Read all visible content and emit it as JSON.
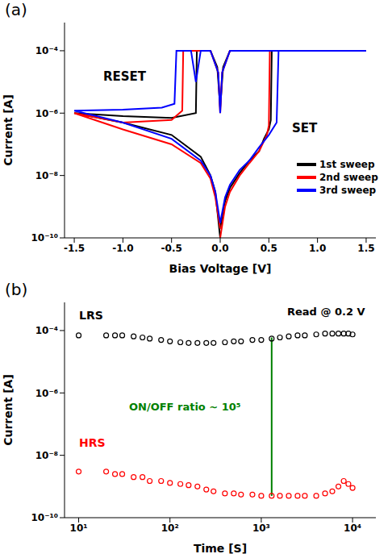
{
  "chart_data": [
    {
      "type": "line",
      "title": "(a)",
      "x_label": "Bias Voltage [V]",
      "y_label": "Current [A]",
      "log": "y",
      "legend": "lower right",
      "xlim": [
        -1.6,
        1.6
      ],
      "xticks": [
        -1.5,
        {
          "value": -1.0,
          "label": "-1.0"
        },
        -0.5,
        {
          "value": 0.0,
          "label": "0.0"
        },
        0.5,
        {
          "value": 1.0,
          "label": "1.0"
        },
        1.5
      ],
      "ylim": [
        1e-10,
        0.0008
      ],
      "yticks": [
        {
          "value": 1e-10,
          "label": "10⁻¹⁰"
        },
        {
          "value": 1e-08,
          "label": "10⁻⁸"
        },
        {
          "value": 1e-06,
          "label": "10⁻⁶"
        },
        {
          "value": 0.0001,
          "label": "10⁻⁴"
        }
      ],
      "annotations": [
        {
          "text": "RESET"
        },
        {
          "text": "SET"
        }
      ],
      "series": [
        {
          "name": "1st sweep",
          "color": "#000000",
          "marker": "none",
          "line_style": "solid",
          "x": [
            0,
            0.05,
            0.1,
            0.2,
            0.3,
            0.4,
            0.45,
            0.5,
            0.52,
            0.53,
            1.0,
            1.5,
            1.0,
            0.5,
            0.1,
            0.03,
            0.0,
            -0.03,
            -0.1,
            -0.2,
            -0.24,
            -0.25,
            -0.5,
            -1.0,
            -1.5,
            -1.0,
            -0.5,
            -0.2,
            -0.1,
            -0.05,
            0.0
          ],
          "values": [
            2e-10,
            1.5e-09,
            4e-09,
            1.2e-08,
            3e-08,
            6e-08,
            1.5e-07,
            3e-07,
            6e-07,
            0.0001,
            0.0001,
            0.0001,
            0.0001,
            0.0001,
            0.0001,
            3e-05,
            1.5e-06,
            3e-05,
            0.0001,
            0.0001,
            0.0001,
            1e-06,
            7e-07,
            8e-07,
            1e-06,
            5e-07,
            2e-07,
            4e-08,
            1e-08,
            3e-09,
            1e-10
          ]
        },
        {
          "name": "2nd sweep",
          "color": "#ff0000",
          "marker": "none",
          "line_style": "solid",
          "x": [
            0,
            0.05,
            0.1,
            0.2,
            0.3,
            0.4,
            0.48,
            0.5,
            0.51,
            1.0,
            1.5,
            1.0,
            0.5,
            0.1,
            0.02,
            0.0,
            -0.02,
            -0.1,
            -0.3,
            -0.38,
            -0.39,
            -0.5,
            -1.0,
            -1.5,
            -1.0,
            -0.5,
            -0.2,
            -0.1,
            -0.05,
            0.0
          ],
          "values": [
            1e-10,
            1e-09,
            3e-09,
            1e-08,
            2.5e-08,
            6e-08,
            2e-07,
            4e-07,
            0.0001,
            0.0001,
            0.0001,
            0.0001,
            0.0001,
            0.0001,
            2e-05,
            1e-06,
            2e-05,
            0.0001,
            0.0001,
            0.0001,
            1.2e-06,
            6e-07,
            5e-07,
            1e-06,
            3e-07,
            1e-07,
            2.5e-08,
            8e-09,
            2e-09,
            2e-10
          ]
        },
        {
          "name": "3rd sweep",
          "color": "#0000ff",
          "marker": "none",
          "line_style": "solid",
          "x": [
            0,
            0.05,
            0.1,
            0.2,
            0.3,
            0.4,
            0.5,
            0.58,
            0.6,
            1.0,
            1.5,
            1.0,
            0.5,
            0.1,
            0.02,
            0.0,
            -0.02,
            -0.1,
            -0.2,
            -0.25,
            -0.3,
            -0.45,
            -0.47,
            -0.6,
            -1.0,
            -1.5,
            -1.0,
            -0.5,
            -0.2,
            -0.1,
            -0.05,
            0.0
          ],
          "values": [
            3e-10,
            2e-09,
            5e-09,
            1.5e-08,
            3e-08,
            8e-08,
            2e-07,
            5e-07,
            0.0001,
            0.0001,
            0.0001,
            0.0001,
            0.0001,
            0.0001,
            2e-05,
            1e-06,
            2e-05,
            0.0001,
            0.0001,
            1e-05,
            0.0001,
            0.0001,
            2e-06,
            1.5e-06,
            1.3e-06,
            1.2e-06,
            5e-07,
            1.5e-07,
            3e-08,
            1e-08,
            3e-09,
            3e-10
          ]
        }
      ]
    },
    {
      "type": "scatter",
      "title": "(b)",
      "x_label": "Time [S]",
      "y_label": "Current [A]",
      "log": true,
      "xlim": [
        7,
        18000
      ],
      "xticks": [
        {
          "value": 10,
          "label": "10¹"
        },
        {
          "value": 100,
          "label": "10²"
        },
        {
          "value": 1000,
          "label": "10³"
        },
        {
          "value": 10000,
          "label": "10⁴"
        }
      ],
      "ylim": [
        1e-10,
        0.0008
      ],
      "yticks": [
        {
          "value": 1e-10,
          "label": "10⁻¹⁰"
        },
        {
          "value": 1e-08,
          "label": "10⁻⁸"
        },
        {
          "value": 1e-06,
          "label": "10⁻⁶"
        },
        {
          "value": 0.0001,
          "label": "10⁻⁴"
        }
      ],
      "annotations": [
        {
          "text": "Read @ 0.2 V"
        },
        {
          "text": "ON/OFF ratio ~ 10⁵"
        }
      ],
      "ratio_line": {
        "x": 1300,
        "from": 6e-05,
        "to": 5e-10,
        "color": "#008000"
      },
      "series": [
        {
          "name": "LRS",
          "color": "#000000",
          "marker": "open_circle",
          "x": [
            10,
            20,
            25,
            30,
            40,
            50,
            60,
            80,
            100,
            130,
            160,
            200,
            250,
            300,
            400,
            500,
            600,
            800,
            1000,
            1300,
            1600,
            2000,
            2500,
            3000,
            4000,
            5000,
            6000,
            7000,
            8000,
            9000,
            10000
          ],
          "values": [
            7e-05,
            7e-05,
            7e-05,
            7e-05,
            6.5e-05,
            6e-05,
            5.5e-05,
            5e-05,
            4.5e-05,
            4.2e-05,
            4e-05,
            4e-05,
            4e-05,
            4e-05,
            4.2e-05,
            4.5e-05,
            4.5e-05,
            5e-05,
            5e-05,
            5.5e-05,
            6e-05,
            6.5e-05,
            7e-05,
            7e-05,
            7.5e-05,
            8e-05,
            8e-05,
            8e-05,
            8e-05,
            8e-05,
            7.5e-05
          ]
        },
        {
          "name": "HRS",
          "color": "#ff0000",
          "marker": "open_circle",
          "x": [
            10,
            20,
            25,
            30,
            40,
            50,
            60,
            80,
            100,
            130,
            160,
            200,
            250,
            300,
            400,
            500,
            600,
            800,
            1000,
            1300,
            1600,
            2000,
            2500,
            3000,
            4000,
            5000,
            6000,
            7000,
            8000,
            9000,
            10000
          ],
          "values": [
            3e-09,
            3e-09,
            2.5e-09,
            2.5e-09,
            2e-09,
            2e-09,
            1.5e-09,
            1.5e-09,
            1.3e-09,
            1.2e-09,
            1.1e-09,
            1e-09,
            8e-10,
            7e-10,
            6e-10,
            6e-10,
            5.5e-10,
            5.5e-10,
            5e-10,
            5e-10,
            5e-10,
            5e-10,
            5e-10,
            5e-10,
            5e-10,
            6e-10,
            7e-10,
            1e-09,
            1.5e-09,
            1.2e-09,
            9e-10
          ]
        }
      ]
    }
  ]
}
